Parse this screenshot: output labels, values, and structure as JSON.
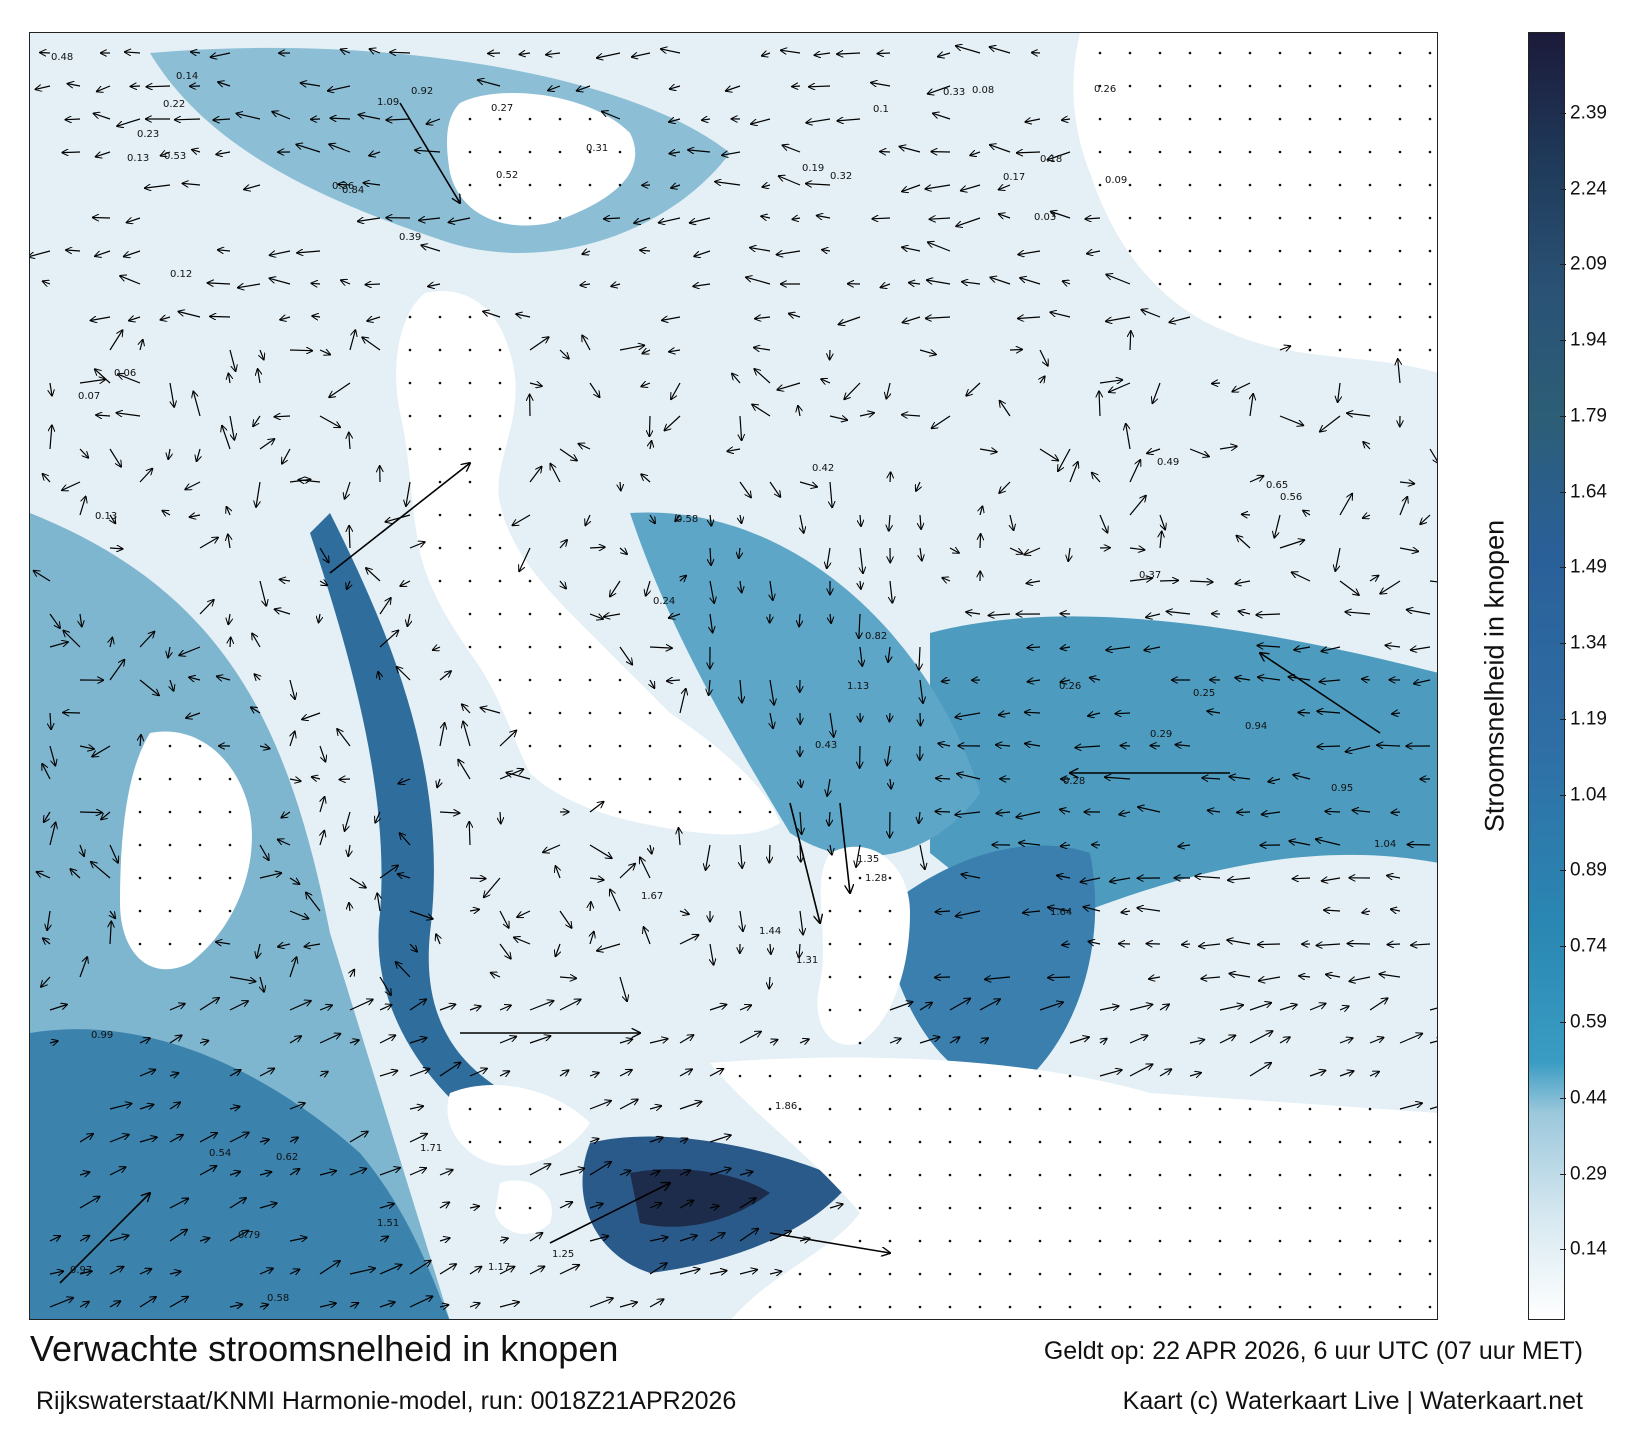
{
  "map": {
    "title": "Verwachte stroomsnelheid in knopen",
    "subtitle": "Rijkswaterstaat/KNMI Harmonie-model, run: 0018Z21APR2026",
    "valid_time": "Geldt op: 22 APR 2026, 6 uur UTC (07 uur MET)",
    "credit": "Kaart (c) Waterkaart Live | Waterkaart.net",
    "colors": {
      "land": "#ffffff",
      "sea_low": "#dcecf3",
      "sea_mid": "#3d8fb5",
      "sea_high": "#1d2c4a",
      "arrow": "#000000",
      "frame": "#222222"
    },
    "speed_labels": [
      {
        "text": "0.48",
        "zone": "north-west"
      },
      {
        "text": "0.53",
        "zone": "north-west"
      },
      {
        "text": "0.39",
        "zone": "north"
      },
      {
        "text": "0.31",
        "zone": "north"
      },
      {
        "text": "0.19",
        "zone": "north-east"
      },
      {
        "text": "0.18",
        "zone": "north-east"
      },
      {
        "text": "0.17",
        "zone": "north-east"
      },
      {
        "text": "0.26",
        "zone": "north-east"
      },
      {
        "text": "0.22",
        "zone": "north-west"
      },
      {
        "text": "0.14",
        "zone": "north-west"
      },
      {
        "text": "0.13",
        "zone": "north-west"
      },
      {
        "text": "0.23",
        "zone": "north-west"
      },
      {
        "text": "0.27",
        "zone": "north"
      },
      {
        "text": "0.36",
        "zone": "north"
      },
      {
        "text": "0.52",
        "zone": "north"
      },
      {
        "text": "0.92",
        "zone": "north"
      },
      {
        "text": "1.09",
        "zone": "north"
      },
      {
        "text": "0.84",
        "zone": "north"
      },
      {
        "text": "0.33",
        "zone": "north-east"
      },
      {
        "text": "0.32",
        "zone": "north-east"
      },
      {
        "text": "0.12",
        "zone": "west"
      },
      {
        "text": "0.13",
        "zone": "west"
      },
      {
        "text": "0.07",
        "zone": "west"
      },
      {
        "text": "0.06",
        "zone": "west"
      },
      {
        "text": "0.24",
        "zone": "centre"
      },
      {
        "text": "0.42",
        "zone": "centre"
      },
      {
        "text": "0.43",
        "zone": "centre"
      },
      {
        "text": "0.58",
        "zone": "centre"
      },
      {
        "text": "0.82",
        "zone": "centre"
      },
      {
        "text": "1.13",
        "zone": "centre"
      },
      {
        "text": "1.64",
        "zone": "south-east"
      },
      {
        "text": "1.28",
        "zone": "south-east"
      },
      {
        "text": "1.35",
        "zone": "south-east"
      },
      {
        "text": "0.94",
        "zone": "east"
      },
      {
        "text": "0.95",
        "zone": "east"
      },
      {
        "text": "1.04",
        "zone": "east"
      },
      {
        "text": "0.65",
        "zone": "east"
      },
      {
        "text": "0.37",
        "zone": "east"
      },
      {
        "text": "0.56",
        "zone": "east"
      },
      {
        "text": "0.49",
        "zone": "east"
      },
      {
        "text": "1.44",
        "zone": "south"
      },
      {
        "text": "1.67",
        "zone": "south"
      },
      {
        "text": "1.51",
        "zone": "south"
      },
      {
        "text": "1.86",
        "zone": "south"
      },
      {
        "text": "0.99",
        "zone": "south-west"
      },
      {
        "text": "0.97",
        "zone": "south-west"
      },
      {
        "text": "0.58",
        "zone": "south-west"
      },
      {
        "text": "0.54",
        "zone": "south-west"
      },
      {
        "text": "0.62",
        "zone": "south-west"
      },
      {
        "text": "0.79",
        "zone": "south-west"
      },
      {
        "text": "1.71",
        "zone": "south"
      },
      {
        "text": "1.25",
        "zone": "south"
      },
      {
        "text": "1.31",
        "zone": "south"
      },
      {
        "text": "1.17",
        "zone": "south"
      },
      {
        "text": "0.25",
        "zone": "east"
      },
      {
        "text": "0.26",
        "zone": "east"
      },
      {
        "text": "0.29",
        "zone": "east"
      },
      {
        "text": "0.28",
        "zone": "east"
      },
      {
        "text": "0.1",
        "zone": "north-east"
      },
      {
        "text": "0.08",
        "zone": "north-east"
      },
      {
        "text": "0.03",
        "zone": "north-east"
      },
      {
        "text": "0.09",
        "zone": "north-east"
      }
    ]
  },
  "colorbar": {
    "label": "Stroomsnelheid in knopen",
    "ticks": [
      "2.39",
      "2.24",
      "2.09",
      "1.94",
      "1.79",
      "1.64",
      "1.49",
      "1.34",
      "1.19",
      "1.04",
      "0.89",
      "0.74",
      "0.59",
      "0.44",
      "0.29",
      "0.14"
    ],
    "min": 0,
    "max": 2.55,
    "tick_values": [
      2.39,
      2.24,
      2.09,
      1.94,
      1.79,
      1.64,
      1.49,
      1.34,
      1.19,
      1.04,
      0.89,
      0.74,
      0.59,
      0.44,
      0.29,
      0.14
    ]
  }
}
